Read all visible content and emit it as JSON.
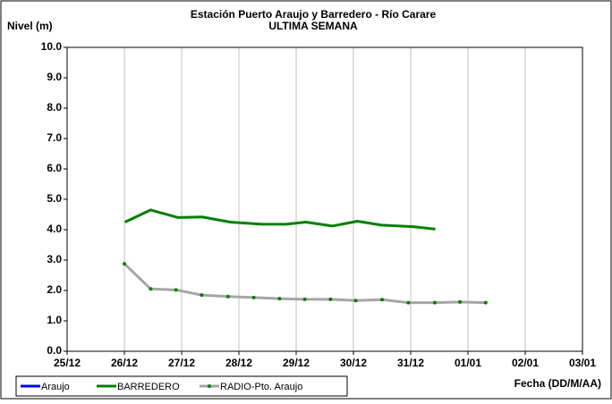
{
  "chart_data": {
    "type": "line",
    "title": "Estación Puerto Araujo y Barredero - Río Carare",
    "subtitle": "ULTIMA SEMANA",
    "y_label": "Nivel (m)",
    "x_label": "Fecha (DD/M/AA)",
    "xlim": [
      0,
      8
    ],
    "xticks": [
      {
        "value": 0,
        "label": "25/12"
      },
      {
        "value": 1,
        "label": "26/12"
      },
      {
        "value": 2,
        "label": "27/12"
      },
      {
        "value": 3,
        "label": "28/12"
      },
      {
        "value": 4,
        "label": "29/12"
      },
      {
        "value": 5,
        "label": "30/12"
      },
      {
        "value": 6,
        "label": "31/12"
      },
      {
        "value": 7,
        "label": "01/01"
      },
      {
        "value": 8,
        "label": "02/01"
      },
      {
        "value": 9,
        "label": "03/01"
      }
    ],
    "ylim": [
      0,
      10
    ],
    "yticks": [
      {
        "value": 0,
        "label": "0.0"
      },
      {
        "value": 1,
        "label": "1.0"
      },
      {
        "value": 2,
        "label": "2.0"
      },
      {
        "value": 3,
        "label": "3.0"
      },
      {
        "value": 4,
        "label": "4.0"
      },
      {
        "value": 5,
        "label": "5.0"
      },
      {
        "value": 6,
        "label": "6.0"
      },
      {
        "value": 7,
        "label": "7.0"
      },
      {
        "value": 8,
        "label": "8.0"
      },
      {
        "value": 9,
        "label": "9.0"
      },
      {
        "value": 10,
        "label": "10.0"
      }
    ],
    "grid": true,
    "series": [
      {
        "name": "Araujo",
        "color": "#0000ff",
        "x": [],
        "values": []
      },
      {
        "name": "BARREDERO",
        "color": "#008000",
        "x": [
          1.01,
          1.46,
          1.94,
          2.36,
          2.85,
          3.4,
          3.82,
          4.17,
          4.63,
          5.07,
          5.49,
          6.04,
          6.43
        ],
        "values": [
          4.25,
          4.65,
          4.4,
          4.42,
          4.25,
          4.18,
          4.18,
          4.25,
          4.12,
          4.28,
          4.15,
          4.1,
          4.02
        ]
      },
      {
        "name": "RADIO-Pto. Araujo",
        "color": "#a6a6a6",
        "marker_color": "#008000",
        "x": [
          1.0,
          1.46,
          1.9,
          2.35,
          2.81,
          3.26,
          3.71,
          4.15,
          4.6,
          5.04,
          5.5,
          5.96,
          6.42,
          6.86,
          7.31
        ],
        "values": [
          2.88,
          2.05,
          2.02,
          1.85,
          1.8,
          1.77,
          1.73,
          1.71,
          1.71,
          1.67,
          1.7,
          1.6,
          1.6,
          1.62,
          1.6
        ]
      }
    ]
  }
}
